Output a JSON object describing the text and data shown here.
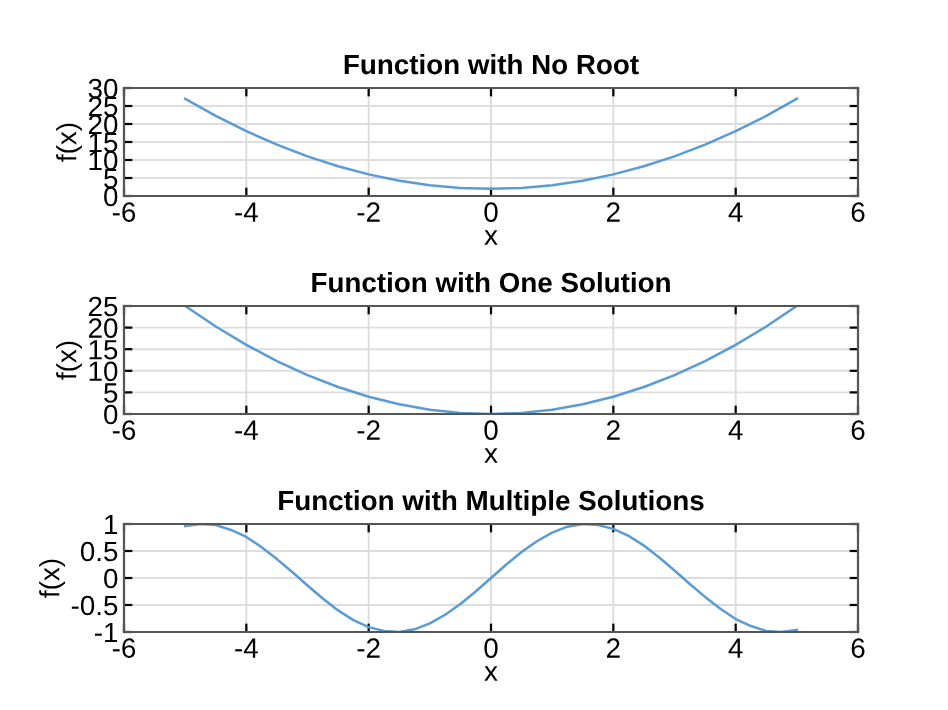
{
  "chart_data": [
    {
      "type": "line",
      "title": "Function with No Root",
      "xlabel": "x",
      "ylabel": "f(x)",
      "x": [
        -5,
        -4.5,
        -4,
        -3.5,
        -3,
        -2.5,
        -2,
        -1.5,
        -1,
        -0.5,
        0,
        0.5,
        1,
        1.5,
        2,
        2.5,
        3,
        3.5,
        4,
        4.5,
        5
      ],
      "series": [
        {
          "color": "#5b9bd5",
          "values": [
            27,
            22.25,
            18,
            14.25,
            11,
            8.25,
            6,
            4.25,
            3,
            2.25,
            2,
            2.25,
            3,
            4.25,
            6,
            8.25,
            11,
            14.25,
            18,
            22.25,
            27
          ]
        }
      ],
      "xlim": [
        -6,
        6
      ],
      "xticks": [
        -6,
        -4,
        -2,
        0,
        2,
        4,
        6
      ],
      "ylim": [
        0,
        30
      ],
      "yticks": [
        0,
        5,
        10,
        15,
        20,
        25,
        30
      ],
      "grid": true
    },
    {
      "type": "line",
      "title": "Function with One Solution",
      "xlabel": "x",
      "ylabel": "f(x)",
      "x": [
        -5,
        -4.5,
        -4,
        -3.5,
        -3,
        -2.5,
        -2,
        -1.5,
        -1,
        -0.5,
        0,
        0.5,
        1,
        1.5,
        2,
        2.5,
        3,
        3.5,
        4,
        4.5,
        5
      ],
      "series": [
        {
          "color": "#5b9bd5",
          "values": [
            25,
            20.25,
            16,
            12.25,
            9,
            6.25,
            4,
            2.25,
            1,
            0.25,
            0,
            0.25,
            1,
            2.25,
            4,
            6.25,
            9,
            12.25,
            16,
            20.25,
            25
          ]
        }
      ],
      "xlim": [
        -6,
        6
      ],
      "xticks": [
        -6,
        -4,
        -2,
        0,
        2,
        4,
        6
      ],
      "ylim": [
        0,
        25
      ],
      "yticks": [
        0,
        5,
        10,
        15,
        20,
        25
      ],
      "grid": true
    },
    {
      "type": "line",
      "title": "Function with Multiple Solutions",
      "xlabel": "x",
      "ylabel": "f(x)",
      "x": [
        -5,
        -4.75,
        -4.5,
        -4.25,
        -4,
        -3.75,
        -3.5,
        -3.25,
        -3,
        -2.75,
        -2.5,
        -2.25,
        -2,
        -1.75,
        -1.5,
        -1.25,
        -1,
        -0.75,
        -0.5,
        -0.25,
        0,
        0.25,
        0.5,
        0.75,
        1,
        1.25,
        1.5,
        1.75,
        2,
        2.25,
        2.5,
        2.75,
        3,
        3.25,
        3.5,
        3.75,
        4,
        4.25,
        4.5,
        4.75,
        5
      ],
      "series": [
        {
          "color": "#5b9bd5",
          "values": [
            0.96,
            1.0,
            0.98,
            0.89,
            0.76,
            0.57,
            0.35,
            0.11,
            -0.14,
            -0.38,
            -0.6,
            -0.78,
            -0.91,
            -0.98,
            -1.0,
            -0.95,
            -0.84,
            -0.68,
            -0.48,
            -0.25,
            0,
            0.25,
            0.48,
            0.68,
            0.84,
            0.95,
            1.0,
            0.98,
            0.91,
            0.78,
            0.6,
            0.38,
            0.14,
            -0.11,
            -0.35,
            -0.57,
            -0.76,
            -0.89,
            -0.98,
            -1.0,
            -0.96
          ]
        }
      ],
      "xlim": [
        -6,
        6
      ],
      "xticks": [
        -6,
        -4,
        -2,
        0,
        2,
        4,
        6
      ],
      "ylim": [
        -1,
        1
      ],
      "yticks": [
        -1,
        -0.5,
        0,
        0.5,
        1
      ],
      "grid": true
    }
  ]
}
